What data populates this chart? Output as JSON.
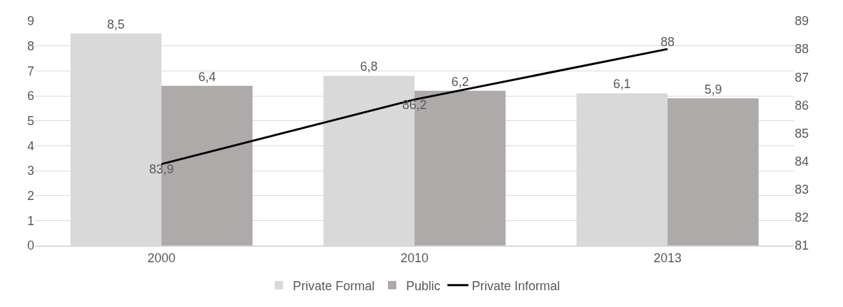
{
  "chart_data": {
    "type": "bar",
    "categories": [
      "2000",
      "2010",
      "2013"
    ],
    "series": [
      {
        "name": "Private Formal",
        "color": "#d9d9d9",
        "values": [
          8.5,
          6.8,
          6.1
        ],
        "value_labels": [
          "8,5",
          "6,8",
          "6,1"
        ]
      },
      {
        "name": "Public",
        "color": "#aeaaaa",
        "values": [
          6.4,
          6.2,
          5.9
        ],
        "value_labels": [
          "6,4",
          "6,2",
          "5,9"
        ]
      },
      {
        "name": "Private Informal",
        "type": "line",
        "axis": "y2",
        "color": "#000000",
        "values": [
          83.9,
          86.2,
          88
        ],
        "value_labels": [
          "83,9",
          "86,2",
          "88"
        ]
      }
    ],
    "ylim": [
      0,
      9
    ],
    "yticks": [
      0,
      1,
      2,
      3,
      4,
      5,
      6,
      7,
      8,
      9
    ],
    "y2lim": [
      81,
      89
    ],
    "y2ticks": [
      81,
      82,
      83,
      84,
      85,
      86,
      87,
      88,
      89
    ],
    "grid": "y",
    "legend": "bottom",
    "marker": "none"
  }
}
